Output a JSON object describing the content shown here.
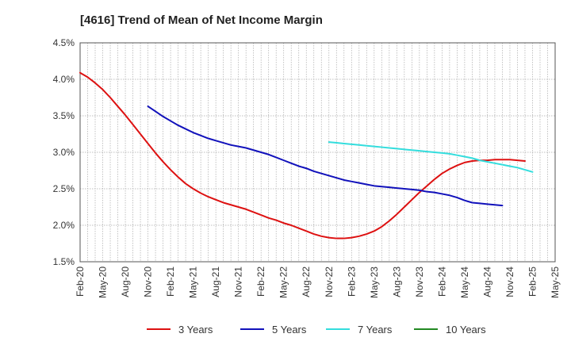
{
  "chart_data": {
    "type": "line",
    "title": "[4616]  Trend of Mean of Net Income Margin",
    "xlabel": "",
    "ylabel": "",
    "y_tick_labels": [
      "1.5%",
      "2.0%",
      "2.5%",
      "3.0%",
      "3.5%",
      "4.0%",
      "4.5%"
    ],
    "y_ticks": [
      1.5,
      2.0,
      2.5,
      3.0,
      3.5,
      4.0,
      4.5
    ],
    "ylim": [
      1.5,
      4.5
    ],
    "x_tick_labels": [
      "Feb-20",
      "May-20",
      "Aug-20",
      "Nov-20",
      "Feb-21",
      "May-21",
      "Aug-21",
      "Nov-21",
      "Feb-22",
      "May-22",
      "Aug-22",
      "Nov-22",
      "Feb-23",
      "May-23",
      "Aug-23",
      "Nov-23",
      "Feb-24",
      "May-24",
      "Aug-24",
      "Nov-24",
      "Feb-25",
      "May-25"
    ],
    "grid": true,
    "legend_position": "bottom",
    "series": [
      {
        "name": "3 Years",
        "color": "#dd1111",
        "start": "Feb-20",
        "values": [
          4.09,
          4.03,
          3.95,
          3.86,
          3.75,
          3.63,
          3.51,
          3.38,
          3.25,
          3.12,
          2.99,
          2.87,
          2.76,
          2.66,
          2.57,
          2.5,
          2.44,
          2.39,
          2.35,
          2.31,
          2.28,
          2.25,
          2.22,
          2.18,
          2.14,
          2.1,
          2.07,
          2.03,
          2.0,
          1.96,
          1.92,
          1.88,
          1.85,
          1.83,
          1.82,
          1.82,
          1.83,
          1.85,
          1.88,
          1.92,
          1.98,
          2.06,
          2.15,
          2.25,
          2.35,
          2.45,
          2.54,
          2.63,
          2.71,
          2.77,
          2.82,
          2.86,
          2.88,
          2.89,
          2.89,
          2.9,
          2.9,
          2.9,
          2.89,
          2.88
        ]
      },
      {
        "name": "5 Years",
        "color": "#1111bb",
        "start": "Nov-20",
        "values": [
          3.63,
          3.56,
          3.49,
          3.43,
          3.37,
          3.32,
          3.27,
          3.23,
          3.19,
          3.16,
          3.13,
          3.1,
          3.08,
          3.06,
          3.03,
          3.0,
          2.97,
          2.93,
          2.89,
          2.85,
          2.81,
          2.78,
          2.74,
          2.71,
          2.68,
          2.65,
          2.62,
          2.6,
          2.58,
          2.56,
          2.54,
          2.53,
          2.52,
          2.51,
          2.5,
          2.49,
          2.48,
          2.46,
          2.45,
          2.43,
          2.41,
          2.38,
          2.34,
          2.31,
          2.3,
          2.29,
          2.28,
          2.27
        ]
      },
      {
        "name": "7 Years",
        "color": "#33dddd",
        "start": "Nov-22",
        "values": [
          3.14,
          3.13,
          3.12,
          3.11,
          3.1,
          3.09,
          3.08,
          3.07,
          3.06,
          3.05,
          3.04,
          3.03,
          3.02,
          3.01,
          3.0,
          2.99,
          2.98,
          2.96,
          2.94,
          2.92,
          2.89,
          2.87,
          2.85,
          2.83,
          2.81,
          2.79,
          2.76,
          2.73
        ]
      },
      {
        "name": "10 Years",
        "color": "#228822",
        "start": "Feb-25",
        "values": []
      }
    ]
  }
}
